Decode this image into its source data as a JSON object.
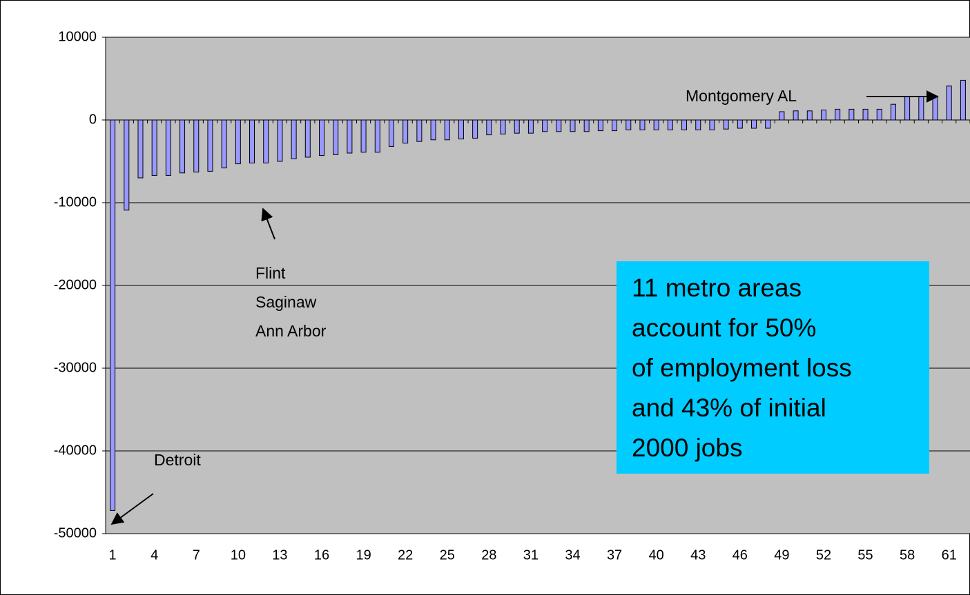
{
  "chart_data": {
    "type": "bar",
    "categories": [
      "1",
      null,
      null,
      "4",
      null,
      null,
      "7",
      null,
      null,
      "10",
      null,
      null,
      "13",
      null,
      null,
      "16",
      null,
      null,
      "19",
      null,
      null,
      "22",
      null,
      null,
      "25",
      null,
      null,
      "28",
      null,
      null,
      "31",
      null,
      null,
      "34",
      null,
      null,
      "37",
      null,
      null,
      "40",
      null,
      null,
      "43",
      null,
      null,
      "46",
      null,
      null,
      "49",
      null,
      null,
      "52",
      null,
      null,
      "55",
      null,
      null,
      "58",
      null,
      null,
      "61",
      null
    ],
    "values": [
      -47200,
      -10900,
      -7000,
      -6700,
      -6700,
      -6400,
      -6300,
      -6200,
      -5800,
      -5300,
      -5200,
      -5200,
      -5000,
      -4700,
      -4500,
      -4300,
      -4200,
      -4000,
      -3900,
      -3900,
      -3200,
      -2800,
      -2600,
      -2400,
      -2400,
      -2300,
      -2200,
      -1800,
      -1700,
      -1600,
      -1600,
      -1400,
      -1400,
      -1400,
      -1400,
      -1300,
      -1300,
      -1200,
      -1200,
      -1200,
      -1200,
      -1200,
      -1200,
      -1200,
      -1100,
      -1000,
      -1000,
      -1000,
      1000,
      1100,
      1100,
      1200,
      1300,
      1300,
      1300,
      1300,
      1900,
      2800,
      2800,
      2900,
      4100,
      4800
    ],
    "color": "#9999ff",
    "ylim": [
      -50000,
      10000
    ],
    "yticks": [
      -50000,
      -40000,
      -30000,
      -20000,
      -10000,
      0,
      10000
    ],
    "grid": true,
    "annotations": [
      "Montgomery AL",
      "Detroit",
      "Flint",
      "Saginaw",
      "Ann Arbor"
    ],
    "note_box": [
      "11 metro areas",
      "account for 50%",
      "of employment loss",
      "and 43% of initial",
      "2000 jobs"
    ]
  }
}
